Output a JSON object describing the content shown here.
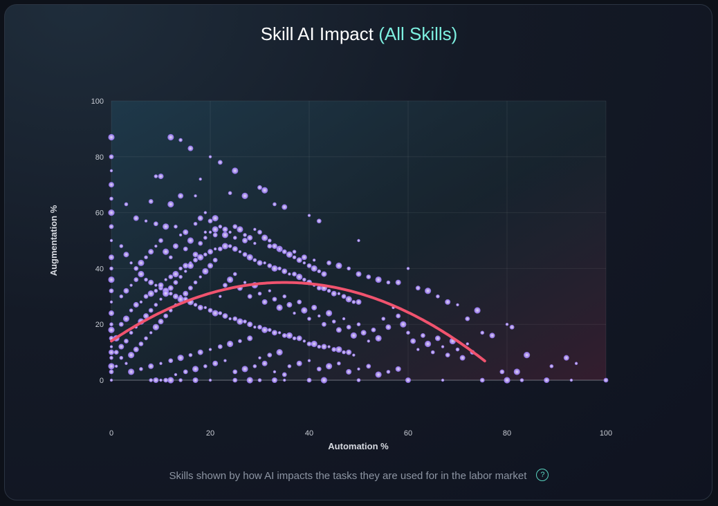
{
  "title": {
    "main": "Skill AI Impact",
    "accent": "(All Skills)"
  },
  "caption": "Skills shown by how AI impacts the tasks they are used for in the labor market",
  "help_icon": "?",
  "colors": {
    "point": "#b69cff",
    "trend": "#f0536e",
    "accent": "#7df0e0"
  },
  "chart_data": {
    "type": "scatter",
    "title": "Skill AI Impact (All Skills)",
    "xlabel": "Automation %",
    "ylabel": "Augmentation %",
    "xlim": [
      0,
      100
    ],
    "ylim": [
      0,
      100
    ],
    "xticks": [
      "0",
      "20",
      "40",
      "60",
      "80",
      "100"
    ],
    "yticks": [
      "0",
      "20",
      "40",
      "60",
      "80",
      "100"
    ],
    "grid": true,
    "trendline": {
      "type": "quadratic",
      "x_range": [
        0,
        75.5
      ],
      "peak": {
        "x": 35,
        "y": 35
      },
      "y_at_0": 14,
      "y_at_end": 1
    },
    "points": [
      [
        0,
        0
      ],
      [
        0,
        3
      ],
      [
        0,
        5
      ],
      [
        0,
        8
      ],
      [
        0,
        10
      ],
      [
        0,
        12
      ],
      [
        0,
        15
      ],
      [
        0,
        18
      ],
      [
        0,
        20
      ],
      [
        0,
        24
      ],
      [
        0,
        28
      ],
      [
        0,
        32
      ],
      [
        0,
        36
      ],
      [
        0,
        40
      ],
      [
        0,
        44
      ],
      [
        0,
        50
      ],
      [
        0,
        55
      ],
      [
        0,
        60
      ],
      [
        0,
        65
      ],
      [
        0,
        70
      ],
      [
        0,
        75
      ],
      [
        0,
        80
      ],
      [
        0,
        87
      ],
      [
        8,
        0
      ],
      [
        9,
        0
      ],
      [
        10,
        0
      ],
      [
        11,
        0
      ],
      [
        12,
        0
      ],
      [
        14,
        0
      ],
      [
        17,
        0
      ],
      [
        20,
        0
      ],
      [
        25,
        0
      ],
      [
        28,
        0
      ],
      [
        30,
        0
      ],
      [
        33,
        0
      ],
      [
        35,
        0
      ],
      [
        40,
        0
      ],
      [
        43,
        0
      ],
      [
        50,
        0
      ],
      [
        60,
        0
      ],
      [
        67,
        0
      ],
      [
        75,
        0
      ],
      [
        80,
        0
      ],
      [
        83,
        0
      ],
      [
        88,
        0
      ],
      [
        93,
        0
      ],
      [
        100,
        0
      ],
      [
        12,
        87
      ],
      [
        14,
        86
      ],
      [
        16,
        83
      ],
      [
        20,
        80
      ],
      [
        22,
        78
      ],
      [
        25,
        75
      ],
      [
        9,
        73
      ],
      [
        10,
        73
      ],
      [
        18,
        72
      ],
      [
        30,
        69
      ],
      [
        31,
        68
      ],
      [
        24,
        67
      ],
      [
        14,
        66
      ],
      [
        17,
        66
      ],
      [
        8,
        64
      ],
      [
        12,
        63
      ],
      [
        33,
        63
      ],
      [
        35,
        62
      ],
      [
        40,
        59
      ],
      [
        42,
        57
      ],
      [
        27,
        66
      ],
      [
        3,
        63
      ],
      [
        5,
        58
      ],
      [
        7,
        57
      ],
      [
        9,
        56
      ],
      [
        11,
        55
      ],
      [
        13,
        55
      ],
      [
        15,
        53
      ],
      [
        19,
        53
      ],
      [
        21,
        52
      ],
      [
        23,
        52
      ],
      [
        25,
        51
      ],
      [
        27,
        50
      ],
      [
        29,
        49
      ],
      [
        32,
        48
      ],
      [
        34,
        47
      ],
      [
        37,
        46
      ],
      [
        39,
        44
      ],
      [
        41,
        43
      ],
      [
        44,
        42
      ],
      [
        46,
        41
      ],
      [
        48,
        40
      ],
      [
        50,
        38
      ],
      [
        50,
        50
      ],
      [
        52,
        37
      ],
      [
        54,
        36
      ],
      [
        56,
        35
      ],
      [
        58,
        35
      ],
      [
        60,
        40
      ],
      [
        62,
        33
      ],
      [
        64,
        32
      ],
      [
        66,
        30
      ],
      [
        68,
        28
      ],
      [
        70,
        27
      ],
      [
        72,
        22
      ],
      [
        74,
        25
      ],
      [
        75,
        17
      ],
      [
        77,
        16
      ],
      [
        80,
        20
      ],
      [
        81,
        19
      ],
      [
        84,
        9
      ],
      [
        89,
        5
      ],
      [
        92,
        8
      ],
      [
        94,
        6
      ],
      [
        79,
        3
      ],
      [
        82,
        3
      ],
      [
        2,
        48
      ],
      [
        3,
        45
      ],
      [
        4,
        42
      ],
      [
        5,
        40
      ],
      [
        6,
        38
      ],
      [
        7,
        36
      ],
      [
        8,
        35
      ],
      [
        9,
        34
      ],
      [
        10,
        33
      ],
      [
        11,
        32
      ],
      [
        12,
        31
      ],
      [
        13,
        30
      ],
      [
        14,
        30
      ],
      [
        15,
        29
      ],
      [
        16,
        28
      ],
      [
        17,
        27
      ],
      [
        18,
        26
      ],
      [
        19,
        26
      ],
      [
        20,
        25
      ],
      [
        21,
        24
      ],
      [
        22,
        24
      ],
      [
        23,
        23
      ],
      [
        24,
        22
      ],
      [
        25,
        22
      ],
      [
        26,
        21
      ],
      [
        27,
        21
      ],
      [
        28,
        20
      ],
      [
        29,
        19
      ],
      [
        30,
        19
      ],
      [
        31,
        18
      ],
      [
        32,
        18
      ],
      [
        33,
        17
      ],
      [
        34,
        17
      ],
      [
        35,
        16
      ],
      [
        36,
        16
      ],
      [
        37,
        15
      ],
      [
        38,
        15
      ],
      [
        39,
        14
      ],
      [
        40,
        13
      ],
      [
        41,
        13
      ],
      [
        42,
        12
      ],
      [
        43,
        12
      ],
      [
        44,
        12
      ],
      [
        45,
        11
      ],
      [
        46,
        11
      ],
      [
        47,
        10
      ],
      [
        48,
        10
      ],
      [
        49,
        9
      ],
      [
        2,
        20
      ],
      [
        3,
        22
      ],
      [
        4,
        25
      ],
      [
        5,
        27
      ],
      [
        6,
        28
      ],
      [
        7,
        30
      ],
      [
        8,
        31
      ],
      [
        9,
        32
      ],
      [
        10,
        34
      ],
      [
        11,
        36
      ],
      [
        12,
        37
      ],
      [
        13,
        38
      ],
      [
        14,
        40
      ],
      [
        15,
        41
      ],
      [
        16,
        42
      ],
      [
        17,
        43
      ],
      [
        18,
        44
      ],
      [
        19,
        45
      ],
      [
        20,
        46
      ],
      [
        21,
        47
      ],
      [
        22,
        47
      ],
      [
        23,
        48
      ],
      [
        24,
        48
      ],
      [
        25,
        47
      ],
      [
        26,
        46
      ],
      [
        27,
        45
      ],
      [
        28,
        44
      ],
      [
        29,
        43
      ],
      [
        30,
        42
      ],
      [
        31,
        42
      ],
      [
        32,
        41
      ],
      [
        33,
        40
      ],
      [
        34,
        40
      ],
      [
        35,
        39
      ],
      [
        36,
        38
      ],
      [
        37,
        38
      ],
      [
        38,
        37
      ],
      [
        39,
        36
      ],
      [
        40,
        35
      ],
      [
        41,
        34
      ],
      [
        42,
        33
      ],
      [
        43,
        33
      ],
      [
        44,
        32
      ],
      [
        45,
        31
      ],
      [
        46,
        31
      ],
      [
        47,
        30
      ],
      [
        48,
        29
      ],
      [
        49,
        28
      ],
      [
        50,
        28
      ],
      [
        1,
        5
      ],
      [
        1,
        10
      ],
      [
        1,
        15
      ],
      [
        2,
        8
      ],
      [
        2,
        12
      ],
      [
        3,
        6
      ],
      [
        3,
        14
      ],
      [
        4,
        9
      ],
      [
        4,
        17
      ],
      [
        5,
        11
      ],
      [
        5,
        19
      ],
      [
        6,
        13
      ],
      [
        6,
        21
      ],
      [
        7,
        15
      ],
      [
        7,
        23
      ],
      [
        8,
        17
      ],
      [
        8,
        25
      ],
      [
        9,
        19
      ],
      [
        9,
        27
      ],
      [
        10,
        21
      ],
      [
        10,
        29
      ],
      [
        11,
        23
      ],
      [
        11,
        31
      ],
      [
        12,
        25
      ],
      [
        12,
        33
      ],
      [
        13,
        27
      ],
      [
        13,
        35
      ],
      [
        14,
        29
      ],
      [
        14,
        37
      ],
      [
        15,
        31
      ],
      [
        15,
        39
      ],
      [
        16,
        33
      ],
      [
        16,
        41
      ],
      [
        17,
        35
      ],
      [
        17,
        45
      ],
      [
        18,
        37
      ],
      [
        18,
        49
      ],
      [
        19,
        39
      ],
      [
        19,
        51
      ],
      [
        20,
        41
      ],
      [
        20,
        53
      ],
      [
        21,
        43
      ],
      [
        21,
        54
      ],
      [
        2,
        30
      ],
      [
        3,
        32
      ],
      [
        4,
        34
      ],
      [
        5,
        36
      ],
      [
        6,
        42
      ],
      [
        7,
        44
      ],
      [
        8,
        46
      ],
      [
        9,
        48
      ],
      [
        10,
        50
      ],
      [
        11,
        46
      ],
      [
        12,
        44
      ],
      [
        13,
        48
      ],
      [
        14,
        52
      ],
      [
        15,
        47
      ],
      [
        16,
        50
      ],
      [
        17,
        56
      ],
      [
        18,
        58
      ],
      [
        19,
        60
      ],
      [
        20,
        57
      ],
      [
        21,
        58
      ],
      [
        22,
        55
      ],
      [
        23,
        54
      ],
      [
        24,
        53
      ],
      [
        25,
        55
      ],
      [
        26,
        54
      ],
      [
        27,
        52
      ],
      [
        28,
        51
      ],
      [
        29,
        54
      ],
      [
        30,
        53
      ],
      [
        31,
        51
      ],
      [
        32,
        50
      ],
      [
        33,
        48
      ],
      [
        34,
        47
      ],
      [
        35,
        46
      ],
      [
        36,
        45
      ],
      [
        37,
        44
      ],
      [
        38,
        43
      ],
      [
        39,
        42
      ],
      [
        40,
        41
      ],
      [
        41,
        40
      ],
      [
        42,
        39
      ],
      [
        43,
        38
      ],
      [
        22,
        30
      ],
      [
        23,
        34
      ],
      [
        24,
        36
      ],
      [
        25,
        38
      ],
      [
        26,
        33
      ],
      [
        27,
        35
      ],
      [
        28,
        30
      ],
      [
        29,
        34
      ],
      [
        30,
        31
      ],
      [
        31,
        28
      ],
      [
        32,
        32
      ],
      [
        33,
        29
      ],
      [
        34,
        26
      ],
      [
        35,
        30
      ],
      [
        36,
        27
      ],
      [
        37,
        24
      ],
      [
        38,
        28
      ],
      [
        39,
        25
      ],
      [
        40,
        22
      ],
      [
        41,
        26
      ],
      [
        42,
        23
      ],
      [
        43,
        20
      ],
      [
        44,
        24
      ],
      [
        45,
        21
      ],
      [
        46,
        18
      ],
      [
        47,
        22
      ],
      [
        48,
        19
      ],
      [
        49,
        16
      ],
      [
        50,
        20
      ],
      [
        51,
        17
      ],
      [
        52,
        14
      ],
      [
        53,
        18
      ],
      [
        54,
        15
      ],
      [
        55,
        22
      ],
      [
        56,
        19
      ],
      [
        57,
        26
      ],
      [
        58,
        23
      ],
      [
        59,
        20
      ],
      [
        60,
        17
      ],
      [
        61,
        14
      ],
      [
        62,
        11
      ],
      [
        63,
        16
      ],
      [
        64,
        13
      ],
      [
        65,
        10
      ],
      [
        66,
        15
      ],
      [
        67,
        12
      ],
      [
        68,
        9
      ],
      [
        69,
        14
      ],
      [
        70,
        11
      ],
      [
        71,
        8
      ],
      [
        72,
        13
      ],
      [
        73,
        10
      ],
      [
        4,
        3
      ],
      [
        6,
        4
      ],
      [
        8,
        5
      ],
      [
        10,
        6
      ],
      [
        12,
        7
      ],
      [
        14,
        8
      ],
      [
        16,
        9
      ],
      [
        18,
        10
      ],
      [
        20,
        11
      ],
      [
        22,
        12
      ],
      [
        24,
        13
      ],
      [
        26,
        14
      ],
      [
        28,
        15
      ],
      [
        30,
        8
      ],
      [
        32,
        9
      ],
      [
        34,
        10
      ],
      [
        36,
        5
      ],
      [
        38,
        6
      ],
      [
        40,
        7
      ],
      [
        42,
        4
      ],
      [
        44,
        5
      ],
      [
        46,
        6
      ],
      [
        48,
        3
      ],
      [
        50,
        4
      ],
      [
        52,
        5
      ],
      [
        54,
        2
      ],
      [
        56,
        3
      ],
      [
        58,
        4
      ],
      [
        13,
        2
      ],
      [
        15,
        3
      ],
      [
        17,
        4
      ],
      [
        19,
        5
      ],
      [
        21,
        6
      ],
      [
        23,
        7
      ],
      [
        25,
        3
      ],
      [
        27,
        4
      ],
      [
        29,
        5
      ],
      [
        31,
        6
      ],
      [
        33,
        3
      ],
      [
        35,
        2
      ]
    ]
  }
}
